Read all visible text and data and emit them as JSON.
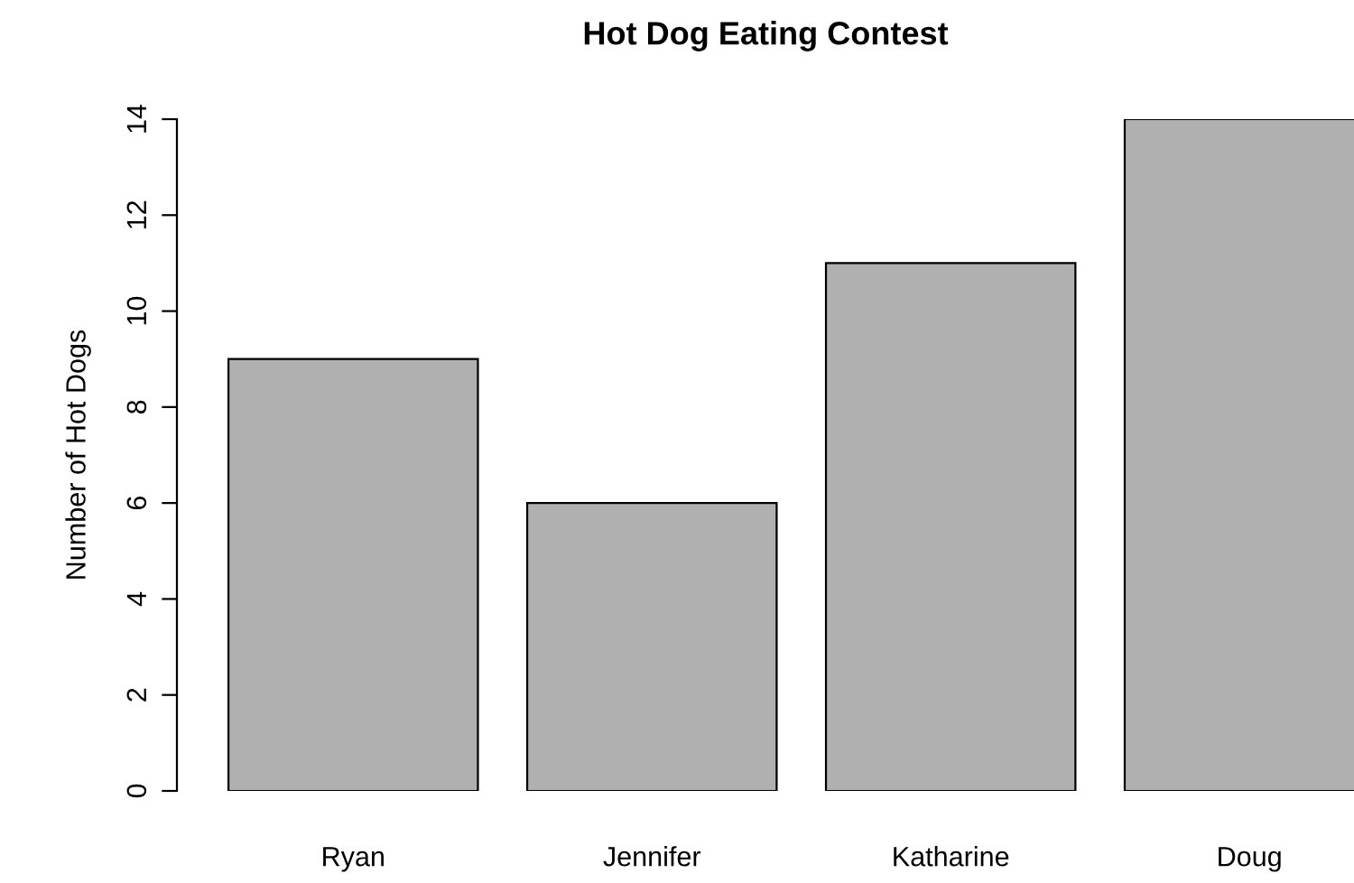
{
  "chart_data": {
    "type": "bar",
    "title": "Hot Dog Eating Contest",
    "ylabel": "Number of Hot Dogs",
    "categories": [
      "Ryan",
      "Jennifer",
      "Katharine",
      "Doug"
    ],
    "values": [
      9,
      6,
      11,
      14
    ],
    "color": "#b0b0b0",
    "ylim": [
      0,
      14
    ],
    "yticks": [
      0,
      2,
      4,
      6,
      8,
      10,
      12,
      14
    ],
    "grid": false,
    "legend": false
  }
}
